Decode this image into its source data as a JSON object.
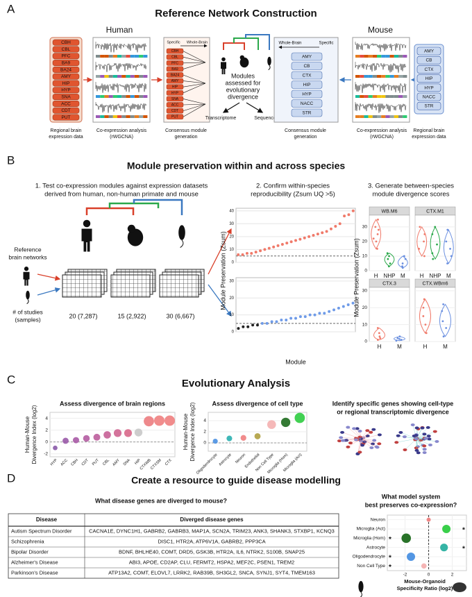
{
  "panel_a": {
    "letter": "A",
    "title": "Reference Network Construction",
    "human": "Human",
    "mouse": "Mouse",
    "human_regions": [
      "CBH",
      "CBL",
      "PFC",
      "BA9",
      "BA24",
      "AMY",
      "HIP",
      "HYP",
      "SNA",
      "ACC",
      "CDT",
      "PUT"
    ],
    "mouse_regions": [
      "AMY",
      "CB",
      "CTX",
      "HIP",
      "HYP",
      "NACC",
      "STR"
    ],
    "human_data_caption": [
      "Regional brain",
      "expression data"
    ],
    "human_coexp_caption": [
      "Co-expression analysis",
      "(rWGCNA)"
    ],
    "human_consensus_caption": [
      "Consensus module",
      "generation"
    ],
    "mouse_consensus_caption": [
      "Consensus module",
      "generation"
    ],
    "mouse_coexp_caption": [
      "Co-expression analysis",
      "(rWGCNA)"
    ],
    "mouse_data_caption": [
      "Regional brain",
      "expression data"
    ],
    "specific": "Specific",
    "whole_brain": "Whole-Brain",
    "modules_text": [
      "Modules",
      "assessed for",
      "evolutionary",
      "divergence"
    ],
    "transcriptome": "Transcriptome",
    "sequence": "Sequence"
  },
  "panel_b": {
    "letter": "B",
    "title": "Module preservation within and across species",
    "step1": [
      "1.  Test co-expression modules against expression datasets",
      "derived from human, non-human primate and mouse"
    ],
    "step2": [
      "2.  Confirm within-species",
      "reproducibility (Zsum UQ >5)"
    ],
    "step3": [
      "3.  Generate between-species",
      "module divergence scores"
    ],
    "reference": [
      "Reference",
      "brain networks"
    ],
    "studies_label": [
      "# of studies",
      "(samples)"
    ],
    "study_counts": [
      "20 (7,287)",
      "15 (2,922)",
      "30 (6,667)"
    ],
    "within_ylabel": "Module Preservation (Zsum)",
    "within_xlabel": "Module",
    "within_charts": [
      {
        "type": "scatter",
        "color": "#f07a6a",
        "values": [
          6,
          6,
          7,
          7,
          8,
          9,
          10,
          11,
          12,
          13,
          14,
          15,
          16,
          17,
          18,
          19,
          20,
          21,
          22,
          23,
          24,
          26,
          28,
          30,
          36,
          37,
          40
        ],
        "ylim": [
          0,
          42
        ],
        "yticks": [
          0,
          10,
          20,
          30,
          40
        ],
        "threshold": 5
      },
      {
        "type": "scatter",
        "color": "#6f9be8",
        "below_color": "#222222",
        "values": [
          2,
          3,
          3,
          4,
          4,
          5,
          5,
          6,
          6,
          7,
          7,
          8,
          8,
          9,
          9,
          10,
          10,
          11,
          11,
          12,
          13,
          14,
          15,
          16,
          17
        ],
        "ylim": [
          0,
          32
        ],
        "yticks": [
          0,
          10,
          20,
          30
        ],
        "threshold": 5
      }
    ],
    "between_ylabel": "Module Preservation (Zsum)",
    "between_charts": [
      {
        "type": "violin",
        "title": "WB.M6",
        "categories": [
          "H",
          "NHP",
          "M"
        ],
        "colors": [
          "#f07a6a",
          "#2aa84a",
          "#6a8fe0"
        ],
        "values": [
          [
            15,
            20,
            22,
            25,
            28,
            30,
            35
          ],
          [
            3,
            5,
            8,
            10,
            12
          ],
          [
            2,
            3,
            5,
            8,
            10
          ]
        ],
        "ylim": [
          0,
          38
        ],
        "yticks": [
          0,
          10,
          20,
          30
        ]
      },
      {
        "type": "violin",
        "title": "CTX.M1",
        "categories": [
          "H",
          "NHP",
          "M"
        ],
        "colors": [
          "#f07a6a",
          "#2aa84a",
          "#6a8fe0"
        ],
        "values": [
          [
            10,
            15,
            20,
            25,
            30
          ],
          [
            8,
            12,
            18,
            25,
            30
          ],
          [
            5,
            10,
            15,
            20,
            28
          ]
        ],
        "ylim": [
          0,
          38
        ],
        "yticks": [
          0,
          10,
          20,
          30
        ]
      },
      {
        "type": "violin",
        "title": "CTX.3",
        "categories": [
          "H",
          "M"
        ],
        "colors": [
          "#f07a6a",
          "#6a8fe0"
        ],
        "values": [
          [
            1,
            2,
            3,
            5,
            8
          ],
          [
            0.5,
            1,
            1.5,
            2,
            3
          ]
        ],
        "ylim": [
          0,
          32
        ],
        "yticks": [
          0,
          10,
          20,
          30
        ]
      },
      {
        "type": "violin",
        "title": "CTX.WBm6",
        "categories": [
          "H",
          "M"
        ],
        "colors": [
          "#f07a6a",
          "#6a8fe0"
        ],
        "values": [
          [
            5,
            10,
            15,
            20,
            25
          ],
          [
            3,
            8,
            12,
            18,
            22
          ]
        ],
        "ylim": [
          0,
          32
        ],
        "yticks": [
          0,
          10,
          20,
          30
        ]
      }
    ]
  },
  "panel_c": {
    "letter": "C",
    "title": "Evolutionary Analysis",
    "regions_chart": {
      "type": "point",
      "title": "Assess divergence of brain regions",
      "ylabel": [
        "Human-Mouse",
        "Divergence Index (log2)"
      ],
      "categories": [
        "HYP",
        "ACC",
        "CBH",
        "CDT",
        "PUT",
        "CBL",
        "AMY",
        "SNA",
        "HIP",
        "CTXWB",
        "CTXSM",
        "CTX"
      ],
      "values": [
        -1,
        0.2,
        0.3,
        0.6,
        0.8,
        1.2,
        1.5,
        1.5,
        1.6,
        3.5,
        3.6,
        3.6
      ],
      "colors": [
        "#8a5aa8",
        "#9a5aa8",
        "#a85aa6",
        "#b45ca2",
        "#bd5e9c",
        "#c66096",
        "#cf6490",
        "#d8688a",
        "#c8c8c8",
        "#ec7c80",
        "#f08080",
        "#f08080"
      ],
      "ylim": [
        -2.5,
        5
      ],
      "yticks": [
        -2,
        0,
        2,
        4
      ]
    },
    "cells_chart": {
      "type": "point",
      "title": "Assess divergence of cell type",
      "ylabel": [
        "Human-Mouse",
        "Divergence Index (log2)"
      ],
      "categories": [
        "Oligodendrocyte",
        "Astrocyte",
        "Neuron",
        "Endothelial",
        "Non Cell Type",
        "Microglia (Hom)",
        "Microglia (Act)"
      ],
      "values": [
        0.3,
        0.8,
        0.9,
        1.2,
        3.3,
        3.7,
        4.5
      ],
      "colors": [
        "#4a90e2",
        "#2ab0b0",
        "#f08080",
        "#b0a040",
        "#f4b0b0",
        "#1e6b1e",
        "#2ecc40"
      ],
      "ylim": [
        -1.5,
        5.5
      ],
      "yticks": [
        0,
        2,
        4
      ]
    },
    "genes_text": [
      "Identify specific genes showing cell-type",
      "or regional transcriptomic divergence"
    ]
  },
  "panel_d": {
    "letter": "D",
    "title": "Create a resource to guide disease modelling",
    "table_question": "What disease genes are diverged to  mouse?",
    "table": {
      "header": [
        "Disease",
        "Diverged disease genes"
      ],
      "rows": [
        [
          "Autism Spectrum Disorder",
          "CACNA1E, DYNC1H1, GABRB2, GABRB3, MAP1A, SCN2A, TRIM23, ANK3, SHANK3, STXBP1, KCNQ3"
        ],
        [
          "Schizophrenia",
          "DISC1, HTR2A, ATP6V1A, GABRB2, PPP3CA"
        ],
        [
          "Bipolar Disorder",
          "BDNF, BHLHE40, COMT, DRD5, GSK3B, HTR2A, IL6, NTRK2, S100B, SNAP25"
        ],
        [
          "Alzheimer's Disease",
          "ABI3, APOE, CD2AP, CLU, FERMT2, HSPA2, MEF2C, PSEN1, TREM2"
        ],
        [
          "Parkinson's Disease",
          "ATP13A2, COMT, ELOVL7, LRRK2, RAB39B, SH3GL2, SNCA, SYNJ1, SYT4, TMEM163"
        ]
      ]
    },
    "model_chart": {
      "type": "dot",
      "title": [
        "What model system",
        "best preserves co-expression?"
      ],
      "categories": [
        "Neuron",
        "Microglia (Act)",
        "Microglia (Hom)",
        "Astrocyte",
        "Oligodendrocyte",
        "Non Cell Type"
      ],
      "values": [
        0,
        1.5,
        -1.9,
        1.3,
        -1.5,
        -0.4
      ],
      "colors": [
        "#f08080",
        "#2ecc40",
        "#1e6b1e",
        "#2ab0a0",
        "#4a90e2",
        "#f4b0b0"
      ],
      "stars": [
        null,
        "*",
        "*",
        "*",
        "*",
        "*"
      ],
      "xlim": [
        -3.5,
        3.2
      ],
      "xticks": [
        -2,
        0,
        2
      ],
      "xlabel": [
        "Mouse-Organoid",
        "Specificity Ratio (log2)"
      ]
    }
  }
}
